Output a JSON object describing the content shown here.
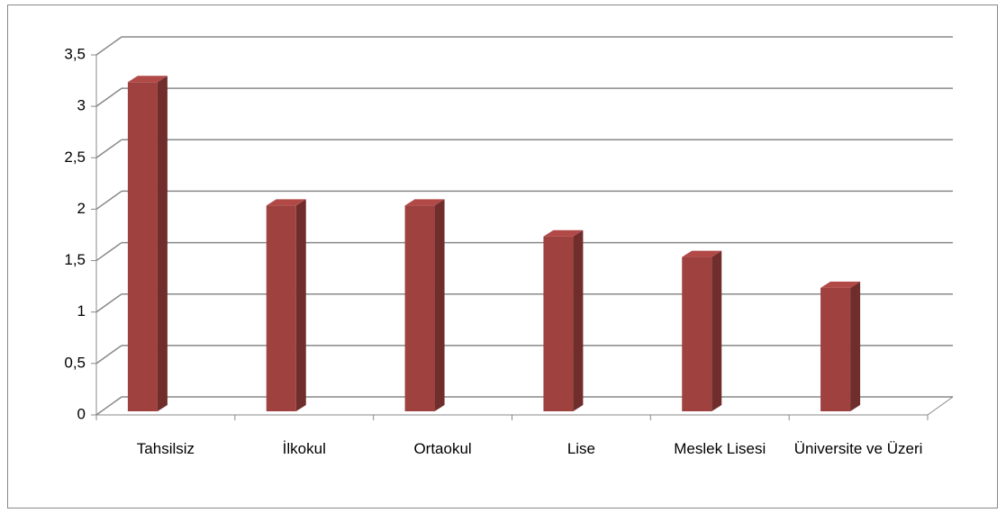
{
  "chart_data": {
    "type": "bar3d",
    "categories": [
      "Tahsilsiz",
      "İlkokul",
      "Ortaokul",
      "Lise",
      "Meslek Lisesi",
      "Üniversite ve Üzeri"
    ],
    "values": [
      3.2,
      2.0,
      2.0,
      1.7,
      1.5,
      1.2
    ],
    "color": "#9e413f",
    "ylim": [
      0,
      3.5
    ],
    "yticks": [
      0,
      {
        "value": 0.5,
        "label": "0,5"
      },
      1,
      {
        "value": 1.5,
        "label": "1,5"
      },
      2,
      {
        "value": 2.5,
        "label": "2,5"
      },
      3,
      {
        "value": 3.5,
        "label": "3,5"
      }
    ],
    "grid": true
  }
}
